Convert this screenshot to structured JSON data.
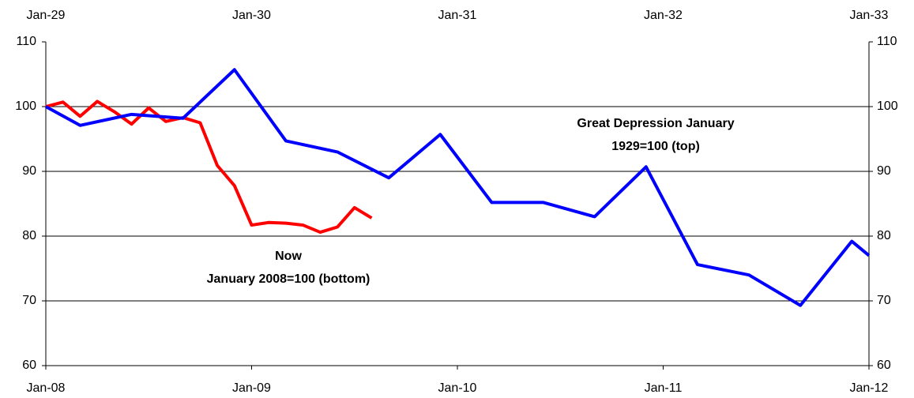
{
  "chart_data": {
    "type": "line",
    "xlim": [
      0,
      48
    ],
    "xticks": [
      {
        "value": 0,
        "label": "Jan-08"
      },
      {
        "value": 12,
        "label": "Jan-09"
      },
      {
        "value": 24,
        "label": "Jan-10"
      },
      {
        "value": 36,
        "label": "Jan-11"
      },
      {
        "value": 48,
        "label": "Jan-12"
      }
    ],
    "x2ticks": [
      {
        "value": 0,
        "label": "Jan-29"
      },
      {
        "value": 12,
        "label": "Jan-30"
      },
      {
        "value": 24,
        "label": "Jan-31"
      },
      {
        "value": 36,
        "label": "Jan-32"
      },
      {
        "value": 48,
        "label": "Jan-33"
      }
    ],
    "ylim": [
      60,
      110
    ],
    "yticks": [
      60,
      70,
      80,
      90,
      100,
      110
    ],
    "y2lim": [
      60,
      110
    ],
    "y2ticks": [
      60,
      70,
      80,
      90,
      100,
      110
    ],
    "grid": true,
    "series": [
      {
        "color": "#ff0000",
        "x": [
          0,
          1,
          2,
          3,
          4,
          5,
          6,
          7,
          8,
          9,
          10,
          11,
          12,
          13,
          14,
          15,
          16,
          17,
          18,
          19
        ],
        "values": [
          100,
          100.7,
          98.5,
          100.8,
          99.2,
          97.3,
          99.8,
          97.7,
          98.3,
          97.5,
          90.9,
          87.8,
          81.7,
          82.1,
          82.0,
          81.7,
          80.6,
          81.4,
          84.4,
          82.8
        ]
      },
      {
        "color": "#0000ff",
        "x": [
          0,
          2,
          5,
          8,
          11,
          14,
          17,
          20,
          23,
          26,
          29,
          32,
          35,
          38,
          41,
          44,
          47,
          48
        ],
        "values": [
          100,
          97.1,
          98.8,
          98.2,
          105.7,
          94.7,
          93.0,
          89.0,
          95.7,
          85.2,
          85.2,
          83.0,
          90.7,
          75.6,
          74.0,
          69.3,
          79.2,
          77.0
        ]
      }
    ],
    "annotations": [
      {
        "lines": [
          "Great Depression January",
          "1929=100 (top)"
        ]
      },
      {
        "lines": [
          "Now",
          "January 2008=100 (bottom)"
        ]
      }
    ]
  }
}
